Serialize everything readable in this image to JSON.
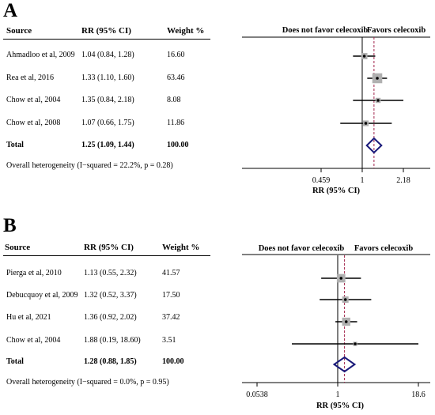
{
  "panels": [
    {
      "letter": "A",
      "headers": {
        "source": "Source",
        "rr": "RR (95% CI)",
        "weight": "Weight %"
      },
      "rows": [
        {
          "source": "Ahmadloo et al, 2009",
          "rr_text": "1.04 (0.84, 1.28)",
          "weight_text": "16.60"
        },
        {
          "source": "Rea et al, 2016",
          "rr_text": "1.33 (1.10, 1.60)",
          "weight_text": "63.46"
        },
        {
          "source": "Chow et al, 2004",
          "rr_text": "1.35 (0.84, 2.18)",
          "weight_text": "8.08"
        },
        {
          "source": "Chow et al, 2008",
          "rr_text": "1.07 (0.66, 1.75)",
          "weight_text": "11.86"
        }
      ],
      "total": {
        "source": "Total",
        "rr_text": "1.25 (1.09, 1.44)",
        "weight_text": "100.00"
      },
      "heterogeneity": "Overall  heterogeneity (I−squared = 22.2%, p = 0.28)",
      "left_label": "Does not favor celecoxib",
      "right_label": "Favors celecoxib",
      "axis_label": "RR (95% CI)",
      "tick_labels": [
        "0.459",
        "1",
        "2.18"
      ]
    },
    {
      "letter": "B",
      "headers": {
        "source": "Source",
        "rr": "RR (95% CI)",
        "weight": "Weight %"
      },
      "rows": [
        {
          "source": "Pierga et al, 2010",
          "rr_text": "1.13 (0.55, 2.32)",
          "weight_text": "41.57"
        },
        {
          "source": "Debucquoy et al, 2009",
          "rr_text": "1.32 (0.52, 3.37)",
          "weight_text": "17.50"
        },
        {
          "source": "Hu et al, 2021",
          "rr_text": "1.36 (0.92, 2.02)",
          "weight_text": "37.42"
        },
        {
          "source": "Chow et al, 2004",
          "rr_text": "1.88 (0.19, 18.60)",
          "weight_text": "3.51"
        }
      ],
      "total": {
        "source": "Total",
        "rr_text": "1.28 (0.88, 1.85)",
        "weight_text": "100.00"
      },
      "heterogeneity": "Overall  heterogeneity (I−squared = 0.0%, p = 0.95)",
      "left_label": "Does not favor celecoxib",
      "right_label": "Favors celecoxib",
      "axis_label": "RR (95% CI)",
      "tick_labels": [
        "0.0538",
        "1",
        "18.6"
      ]
    }
  ],
  "chart_data": [
    {
      "type": "forest",
      "xscale": "log",
      "xlim": [
        0.459,
        2.18
      ],
      "xticks": [
        0.459,
        1,
        2.18
      ],
      "xlabel": "RR (95% CI)",
      "null_line": 1,
      "pooled_line": 1.25,
      "studies": [
        {
          "label": "Ahmadloo et al, 2009",
          "rr": 1.04,
          "lo": 0.84,
          "hi": 1.28,
          "weight": 16.6
        },
        {
          "label": "Rea et al, 2016",
          "rr": 1.33,
          "lo": 1.1,
          "hi": 1.6,
          "weight": 63.46
        },
        {
          "label": "Chow et al, 2004",
          "rr": 1.35,
          "lo": 0.84,
          "hi": 2.18,
          "weight": 8.08
        },
        {
          "label": "Chow et al, 2008",
          "rr": 1.07,
          "lo": 0.66,
          "hi": 1.75,
          "weight": 11.86
        }
      ],
      "total": {
        "rr": 1.25,
        "lo": 1.09,
        "hi": 1.44,
        "weight": 100.0
      },
      "colors": {
        "ci": "#000000",
        "square": "#b0b0b0",
        "diamond": "#1a1a7a",
        "pooled_line": "#a0234a"
      }
    },
    {
      "type": "forest",
      "xscale": "log",
      "xlim": [
        0.0538,
        18.6
      ],
      "xticks": [
        0.0538,
        1,
        18.6
      ],
      "xlabel": "RR (95% CI)",
      "null_line": 1,
      "pooled_line": 1.28,
      "studies": [
        {
          "label": "Pierga et al, 2010",
          "rr": 1.13,
          "lo": 0.55,
          "hi": 2.32,
          "weight": 41.57
        },
        {
          "label": "Debucquoy et al, 2009",
          "rr": 1.32,
          "lo": 0.52,
          "hi": 3.37,
          "weight": 17.5
        },
        {
          "label": "Hu et al, 2021",
          "rr": 1.36,
          "lo": 0.92,
          "hi": 2.02,
          "weight": 37.42
        },
        {
          "label": "Chow et al, 2004",
          "rr": 1.88,
          "lo": 0.19,
          "hi": 18.6,
          "weight": 3.51
        }
      ],
      "total": {
        "rr": 1.28,
        "lo": 0.88,
        "hi": 1.85,
        "weight": 100.0
      },
      "colors": {
        "ci": "#000000",
        "square": "#b0b0b0",
        "diamond": "#1a1a7a",
        "pooled_line": "#a0234a"
      }
    }
  ]
}
